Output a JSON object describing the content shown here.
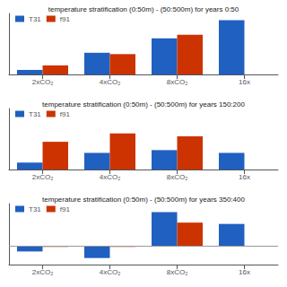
{
  "chart_data": [
    {
      "type": "bar",
      "title": "temperature stratification (0:50m) - (50:500m) for years 0:50",
      "categories": [
        "2xCO₂",
        "4xCO₂",
        "8xCO₂",
        "16x"
      ],
      "series": [
        {
          "name": "T31",
          "color": "#2060c0",
          "values": [
            0.1,
            0.48,
            0.8,
            1.2
          ]
        },
        {
          "name": "f91",
          "color": "#cc3300",
          "values": [
            0.2,
            0.45,
            0.88,
            0.0
          ]
        }
      ],
      "ylim": [
        0.0,
        1.35
      ],
      "tick_labels": "x",
      "grid": false,
      "legend": "upper left"
    },
    {
      "type": "bar",
      "title": "temperature stratification (0:50m) - (50:500m) for years 150:200",
      "categories": [
        "2xCO₂",
        "4xCO₂",
        "8xCO₂",
        "16x"
      ],
      "series": [
        {
          "name": "T31",
          "color": "#2060c0",
          "values": [
            0.025,
            0.06,
            0.07,
            0.06
          ]
        },
        {
          "name": "f91",
          "color": "#cc3300",
          "values": [
            0.1,
            0.13,
            0.12,
            0.0
          ]
        }
      ],
      "ylim": [
        0.0,
        0.22
      ],
      "tick_labels": "x",
      "grid": false,
      "legend": "upper left"
    },
    {
      "type": "bar",
      "title": "temperature stratification (0:50m) - (50:500m) for years 350:400",
      "categories": [
        "2xCO₂",
        "4xCO₂",
        "8xCO₂",
        "16x"
      ],
      "series": [
        {
          "name": "T31",
          "color": "#2060c0",
          "values": [
            -0.08,
            -0.18,
            0.52,
            0.34
          ]
        },
        {
          "name": "f91",
          "color": "#cc3300",
          "values": [
            -0.01,
            -0.01,
            0.36,
            0.0
          ]
        }
      ],
      "ylim": [
        -0.28,
        0.65
      ],
      "tick_labels": "x",
      "grid": false,
      "legend": "upper left"
    }
  ]
}
